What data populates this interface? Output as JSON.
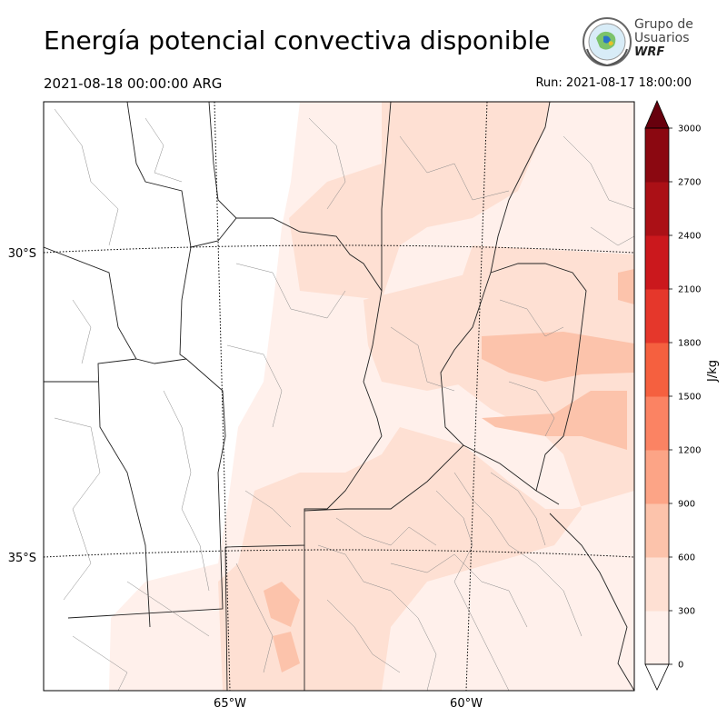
{
  "title": "Energía potencial convectiva disponible",
  "valid_time": "2021-08-18 00:00:00 ARG",
  "run_time": "Run: 2021-08-17 18:00:00",
  "logo": {
    "line1": "Grupo de",
    "line2": "Usuarios",
    "line3": "WRF"
  },
  "lat_labels": [
    "30°S",
    "35°S"
  ],
  "lon_labels": [
    "65°W",
    "60°W"
  ],
  "colorbar": {
    "unit": "J/kg",
    "ticks": [
      "0",
      "300",
      "600",
      "900",
      "1200",
      "1500",
      "1800",
      "2100",
      "2400",
      "2700",
      "3000"
    ],
    "colors": [
      "#fff0eb",
      "#fee0d3",
      "#fcc3ab",
      "#fca486",
      "#fb8363",
      "#f5603f",
      "#e5372b",
      "#cb181d",
      "#ab1016",
      "#8b0811",
      "#67000d"
    ]
  }
}
